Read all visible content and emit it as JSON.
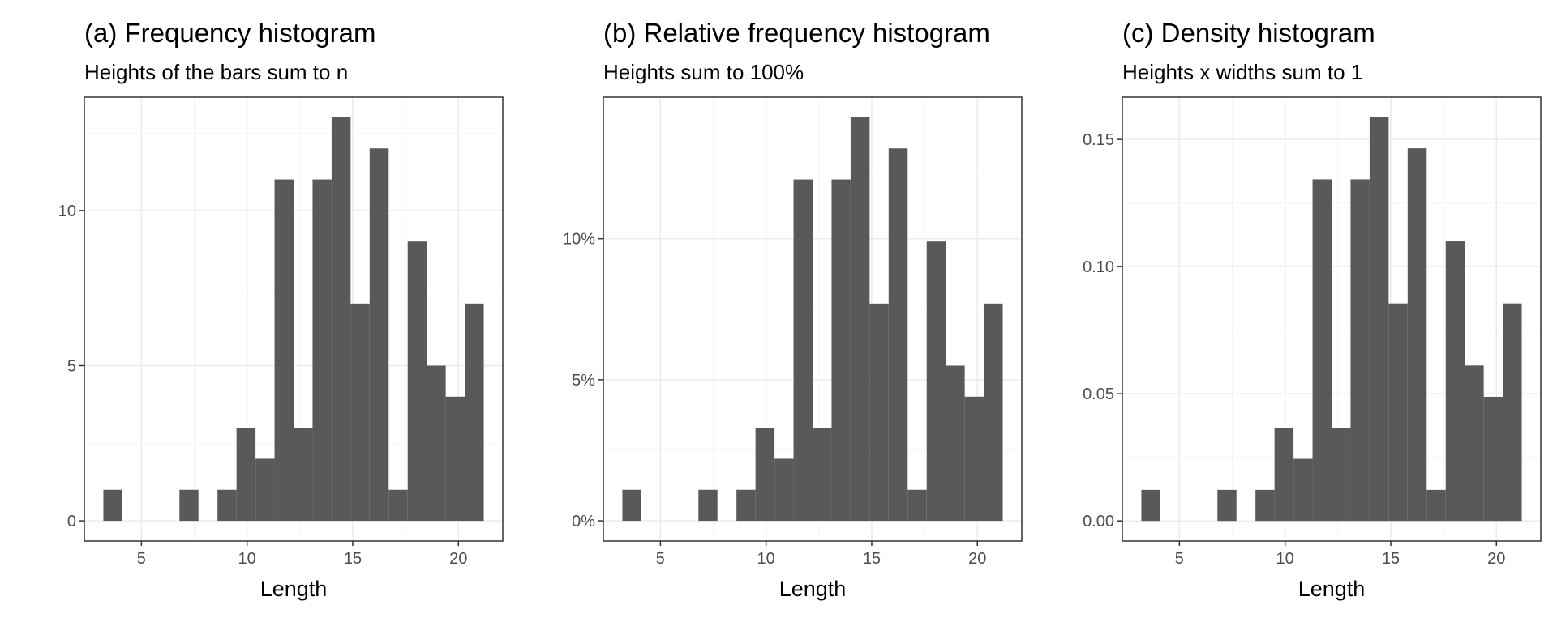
{
  "figure": {
    "colors": {
      "bar": "#595959",
      "grid_major": "#ebebeb",
      "grid_minor": "#f5f5f5",
      "panel_border": "#333333",
      "tick_text": "#4d4d4d"
    }
  },
  "chart_data": [
    {
      "type": "bar",
      "title": "(a) Frequency histogram",
      "subtitle": "Heights of the bars sum to n",
      "xlabel": "Length",
      "ylabel": "",
      "grid": true,
      "bins": [
        {
          "x0": 3.2,
          "x1": 4.1,
          "value": 1
        },
        {
          "x0": 4.1,
          "x1": 5.0,
          "value": 0
        },
        {
          "x0": 5.0,
          "x1": 5.9,
          "value": 0
        },
        {
          "x0": 5.9,
          "x1": 6.8,
          "value": 0
        },
        {
          "x0": 6.8,
          "x1": 7.7,
          "value": 1
        },
        {
          "x0": 7.7,
          "x1": 8.6,
          "value": 0
        },
        {
          "x0": 8.6,
          "x1": 9.5,
          "value": 1
        },
        {
          "x0": 9.5,
          "x1": 10.4,
          "value": 3
        },
        {
          "x0": 10.4,
          "x1": 11.3,
          "value": 2
        },
        {
          "x0": 11.3,
          "x1": 12.2,
          "value": 11
        },
        {
          "x0": 12.2,
          "x1": 13.1,
          "value": 3
        },
        {
          "x0": 13.1,
          "x1": 14.0,
          "value": 11
        },
        {
          "x0": 14.0,
          "x1": 14.9,
          "value": 13
        },
        {
          "x0": 14.9,
          "x1": 15.8,
          "value": 7
        },
        {
          "x0": 15.8,
          "x1": 16.7,
          "value": 12
        },
        {
          "x0": 16.7,
          "x1": 17.6,
          "value": 1
        },
        {
          "x0": 17.6,
          "x1": 18.5,
          "value": 9
        },
        {
          "x0": 18.5,
          "x1": 19.4,
          "value": 5
        },
        {
          "x0": 19.4,
          "x1": 20.3,
          "value": 4
        },
        {
          "x0": 20.3,
          "x1": 21.2,
          "value": 7
        }
      ],
      "xlim": [
        2.3,
        22.1
      ],
      "ylim": [
        -0.65,
        13.65
      ],
      "xticks": [
        5,
        10,
        15,
        20
      ],
      "xtick_labels": [
        "5",
        "10",
        "15",
        "20"
      ],
      "xminor": [
        7.5,
        12.5,
        17.5
      ],
      "yticks": [
        0,
        5,
        10
      ],
      "ytick_labels": [
        "0",
        "5",
        "10"
      ],
      "yminor": [
        2.5,
        7.5,
        12.5
      ]
    },
    {
      "type": "bar",
      "title": "(b) Relative frequency histogram",
      "subtitle": "Heights sum to 100%",
      "xlabel": "Length",
      "ylabel": "",
      "grid": true,
      "bins": [
        {
          "x0": 3.2,
          "x1": 4.1,
          "value": 1.1
        },
        {
          "x0": 4.1,
          "x1": 5.0,
          "value": 0
        },
        {
          "x0": 5.0,
          "x1": 5.9,
          "value": 0
        },
        {
          "x0": 5.9,
          "x1": 6.8,
          "value": 0
        },
        {
          "x0": 6.8,
          "x1": 7.7,
          "value": 1.1
        },
        {
          "x0": 7.7,
          "x1": 8.6,
          "value": 0
        },
        {
          "x0": 8.6,
          "x1": 9.5,
          "value": 1.1
        },
        {
          "x0": 9.5,
          "x1": 10.4,
          "value": 3.3
        },
        {
          "x0": 10.4,
          "x1": 11.3,
          "value": 2.2
        },
        {
          "x0": 11.3,
          "x1": 12.2,
          "value": 12.1
        },
        {
          "x0": 12.2,
          "x1": 13.1,
          "value": 3.3
        },
        {
          "x0": 13.1,
          "x1": 14.0,
          "value": 12.1
        },
        {
          "x0": 14.0,
          "x1": 14.9,
          "value": 14.3
        },
        {
          "x0": 14.9,
          "x1": 15.8,
          "value": 7.7
        },
        {
          "x0": 15.8,
          "x1": 16.7,
          "value": 13.2
        },
        {
          "x0": 16.7,
          "x1": 17.6,
          "value": 1.1
        },
        {
          "x0": 17.6,
          "x1": 18.5,
          "value": 9.9
        },
        {
          "x0": 18.5,
          "x1": 19.4,
          "value": 5.5
        },
        {
          "x0": 19.4,
          "x1": 20.3,
          "value": 4.4
        },
        {
          "x0": 20.3,
          "x1": 21.2,
          "value": 7.7
        }
      ],
      "xlim": [
        2.3,
        22.1
      ],
      "ylim": [
        -0.715,
        15.015
      ],
      "xticks": [
        5,
        10,
        15,
        20
      ],
      "xtick_labels": [
        "5",
        "10",
        "15",
        "20"
      ],
      "xminor": [
        7.5,
        12.5,
        17.5
      ],
      "yticks": [
        0,
        5,
        10
      ],
      "ytick_labels": [
        "0%",
        "5%",
        "10%"
      ],
      "yminor": [
        2.5,
        7.5,
        12.5
      ]
    },
    {
      "type": "bar",
      "title": "(c) Density histogram",
      "subtitle": "Heights x widths sum to 1",
      "xlabel": "Length",
      "ylabel": "",
      "grid": true,
      "bins": [
        {
          "x0": 3.2,
          "x1": 4.1,
          "value": 0.0122
        },
        {
          "x0": 4.1,
          "x1": 5.0,
          "value": 0
        },
        {
          "x0": 5.0,
          "x1": 5.9,
          "value": 0
        },
        {
          "x0": 5.9,
          "x1": 6.8,
          "value": 0
        },
        {
          "x0": 6.8,
          "x1": 7.7,
          "value": 0.0122
        },
        {
          "x0": 7.7,
          "x1": 8.6,
          "value": 0
        },
        {
          "x0": 8.6,
          "x1": 9.5,
          "value": 0.0122
        },
        {
          "x0": 9.5,
          "x1": 10.4,
          "value": 0.0366
        },
        {
          "x0": 10.4,
          "x1": 11.3,
          "value": 0.0244
        },
        {
          "x0": 11.3,
          "x1": 12.2,
          "value": 0.1343
        },
        {
          "x0": 12.2,
          "x1": 13.1,
          "value": 0.0366
        },
        {
          "x0": 13.1,
          "x1": 14.0,
          "value": 0.1343
        },
        {
          "x0": 14.0,
          "x1": 14.9,
          "value": 0.1587
        },
        {
          "x0": 14.9,
          "x1": 15.8,
          "value": 0.0855
        },
        {
          "x0": 15.8,
          "x1": 16.7,
          "value": 0.1465
        },
        {
          "x0": 16.7,
          "x1": 17.6,
          "value": 0.0122
        },
        {
          "x0": 17.6,
          "x1": 18.5,
          "value": 0.1099
        },
        {
          "x0": 18.5,
          "x1": 19.4,
          "value": 0.0611
        },
        {
          "x0": 19.4,
          "x1": 20.3,
          "value": 0.0488
        },
        {
          "x0": 20.3,
          "x1": 21.2,
          "value": 0.0855
        }
      ],
      "xlim": [
        2.3,
        22.1
      ],
      "ylim": [
        -0.0079,
        0.1666
      ],
      "xticks": [
        5,
        10,
        15,
        20
      ],
      "xtick_labels": [
        "5",
        "10",
        "15",
        "20"
      ],
      "xminor": [
        7.5,
        12.5,
        17.5
      ],
      "yticks": [
        0,
        0.05,
        0.1,
        0.15
      ],
      "ytick_labels": [
        "0.00",
        "0.05",
        "0.10",
        "0.15"
      ],
      "yminor": [
        0.025,
        0.075,
        0.125
      ]
    }
  ]
}
